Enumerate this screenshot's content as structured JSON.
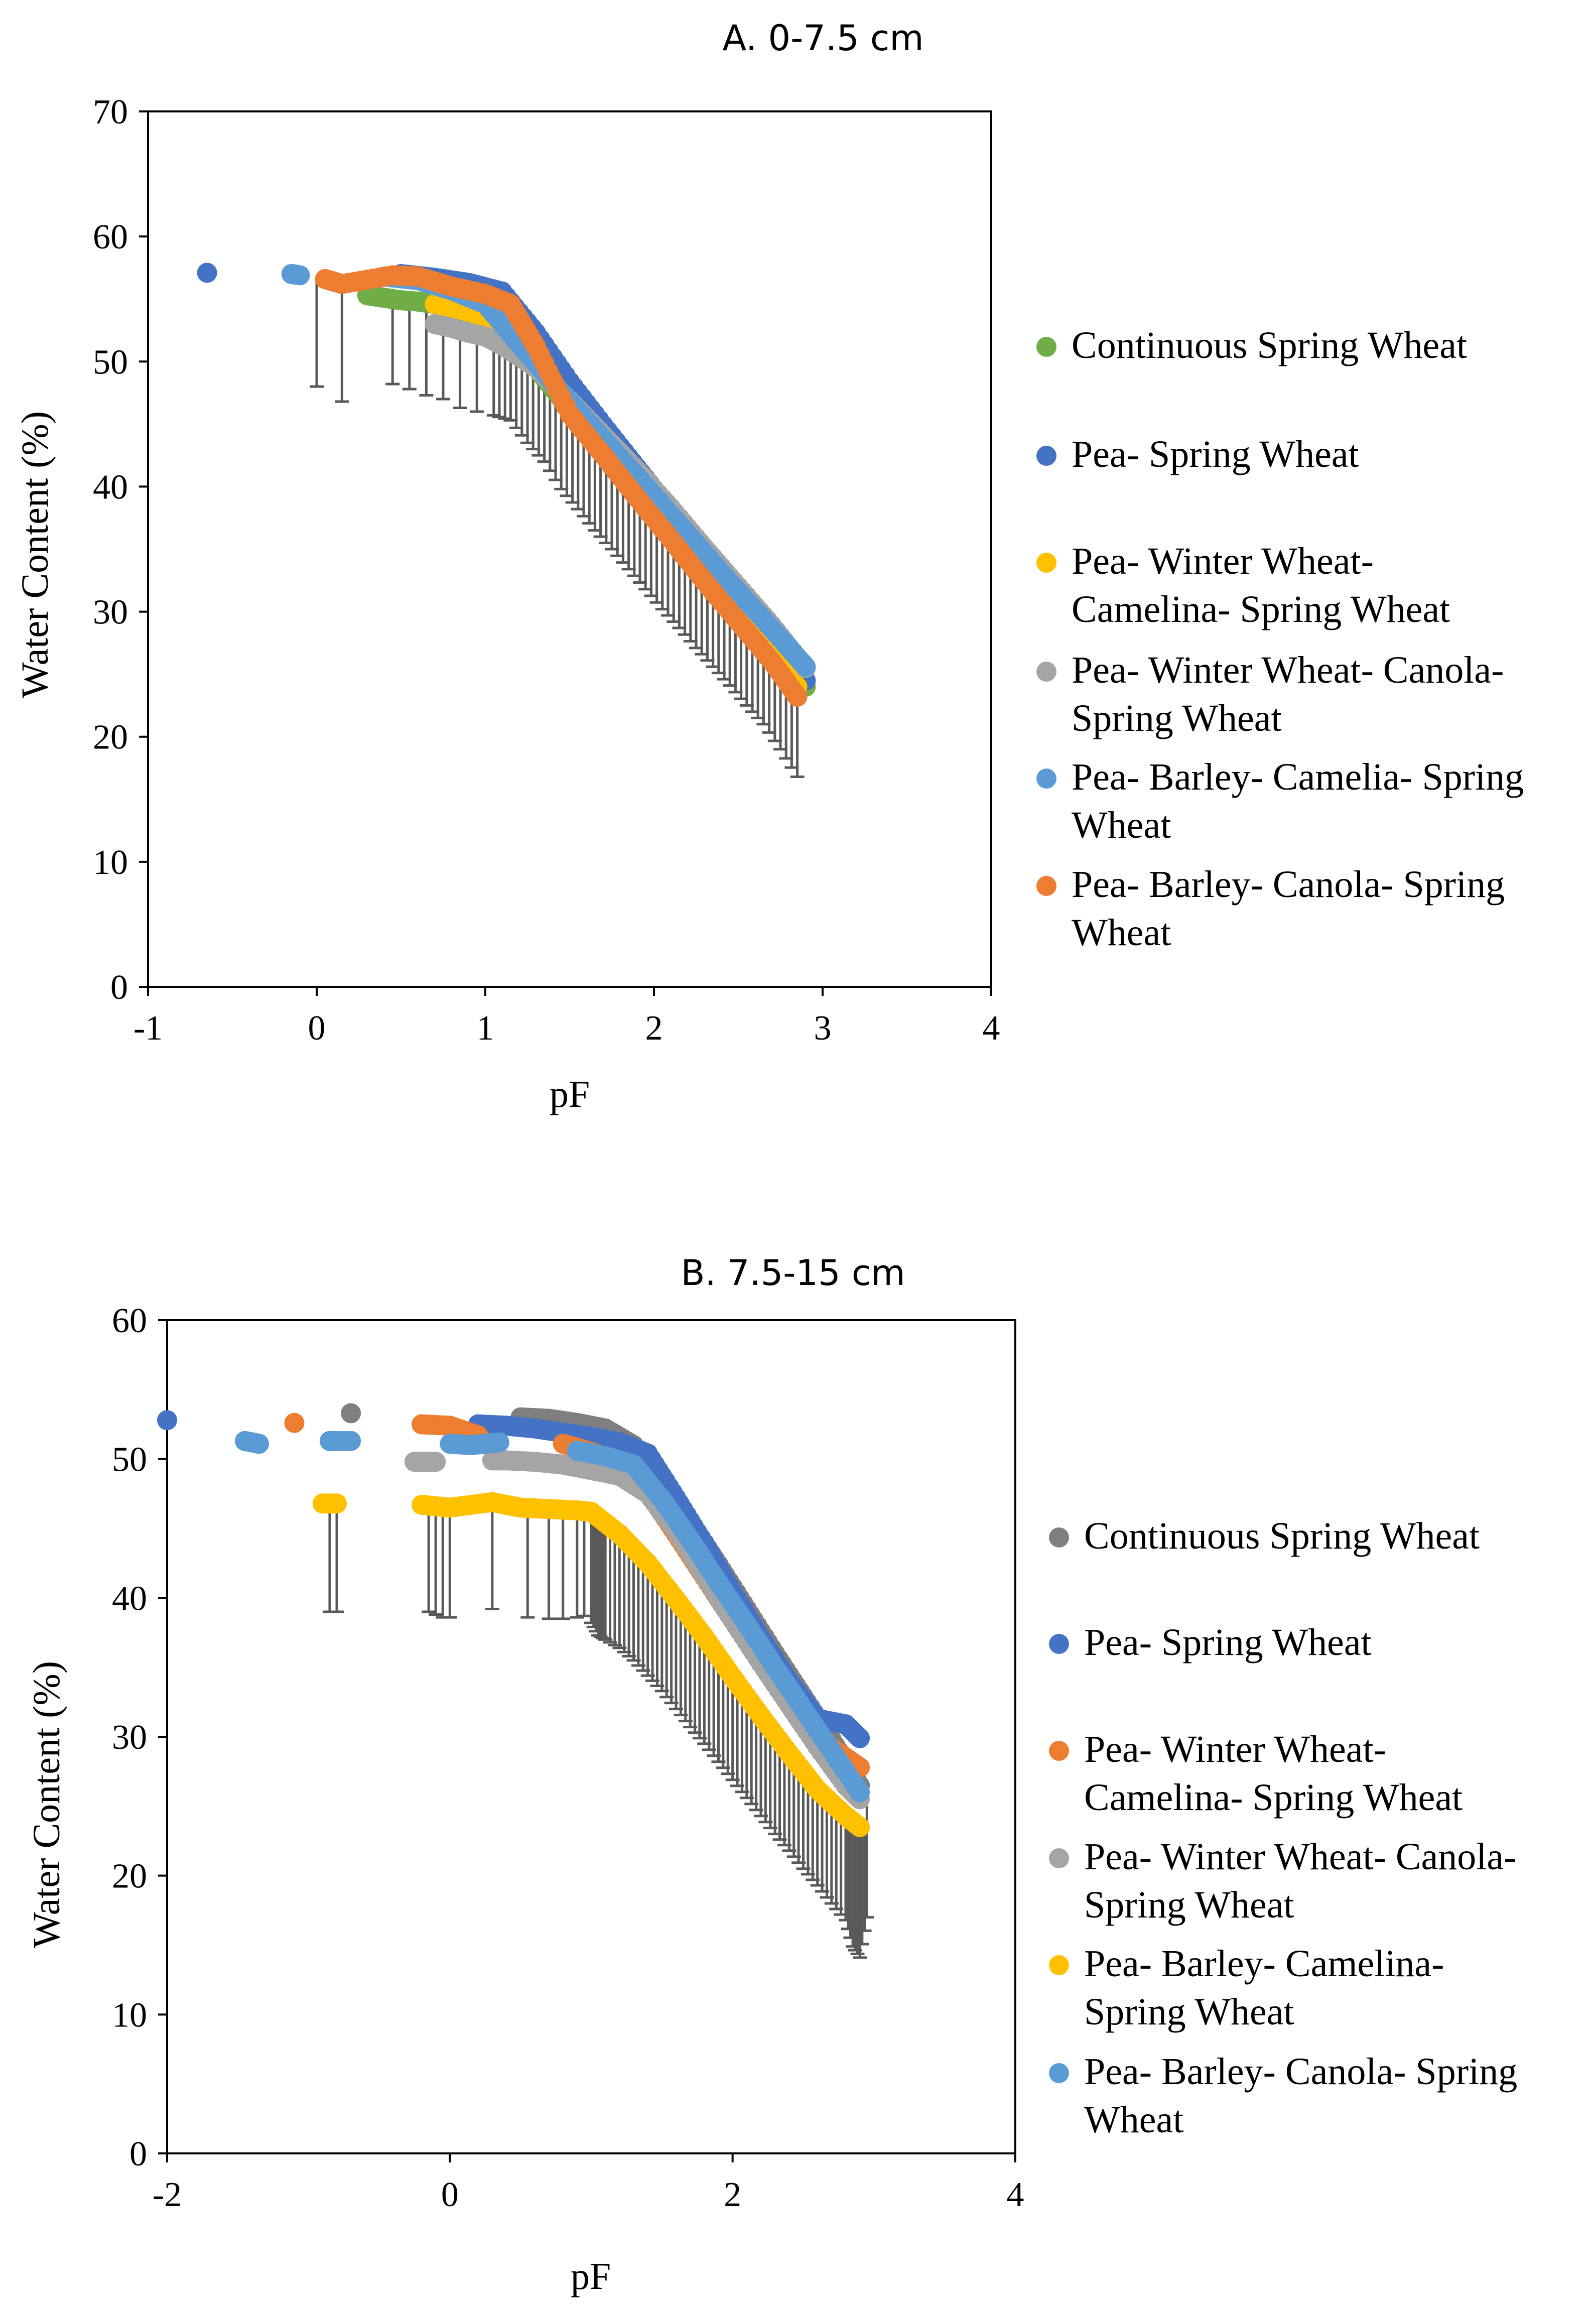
{
  "chart_data": [
    {
      "type": "scatter",
      "title": "A. 0-7.5 cm",
      "xlabel": "pF",
      "ylabel": "Water  Content (%)",
      "xlim": [
        -1,
        4
      ],
      "ylim": [
        0,
        70
      ],
      "xticks": [
        -1,
        0,
        1,
        2,
        3,
        4
      ],
      "yticks": [
        0,
        10,
        20,
        30,
        40,
        50,
        60,
        70
      ],
      "error_bars": "lower, dark grey",
      "series": [
        {
          "name": "Continuous Spring Wheat",
          "color": "#70AD47",
          "x": [
            0.3,
            0.4,
            0.5,
            0.6,
            0.7,
            0.9,
            1.1,
            1.3,
            1.5,
            1.7,
            1.9,
            2.1,
            2.3,
            2.5,
            2.7,
            2.9
          ],
          "y": [
            55.3,
            55.1,
            54.9,
            54.8,
            54.6,
            53.6,
            52.4,
            49.5,
            46.2,
            43.1,
            40.0,
            36.9,
            33.7,
            30.6,
            27.4,
            24.0
          ]
        },
        {
          "name": "Pea- Spring Wheat",
          "color": "#4472C4",
          "x": [
            -0.65,
            0.5,
            0.7,
            0.9,
            1.1,
            1.3,
            1.5,
            1.7,
            1.9,
            2.1,
            2.3,
            2.5,
            2.7,
            2.9
          ],
          "y": [
            57.1,
            57.0,
            56.7,
            56.3,
            55.6,
            52.3,
            48.4,
            44.9,
            41.5,
            38.1,
            34.6,
            31.4,
            28.2,
            24.5
          ]
        },
        {
          "name": "Pea- Winter Wheat- Camelina- Spring Wheat",
          "color": "#FFC000",
          "x": [
            0.7,
            0.8,
            0.9,
            1.0,
            1.1,
            1.3,
            1.5,
            1.7,
            1.9,
            2.1,
            2.3,
            2.5,
            2.7,
            2.85
          ],
          "y": [
            54.6,
            54.3,
            54.0,
            53.6,
            53.1,
            50.1,
            46.6,
            43.1,
            39.6,
            36.2,
            32.8,
            29.5,
            26.3,
            24.0
          ]
        },
        {
          "name": "Pea- Winter Wheat- Canola- Spring Wheat",
          "color": "#A5A5A5",
          "x": [
            0.7,
            0.8,
            0.9,
            1.0,
            1.1,
            1.3,
            1.5,
            1.7,
            1.9,
            2.1,
            2.3,
            2.5,
            2.7,
            2.9
          ],
          "y": [
            53.0,
            52.7,
            52.3,
            52.0,
            51.3,
            49.5,
            46.9,
            44.1,
            41.3,
            38.3,
            35.1,
            32.0,
            28.9,
            25.5
          ]
        },
        {
          "name": "Pea- Barley- Camelia- Spring Wheat",
          "color": "#5B9BD5",
          "x": [
            -0.15,
            -0.1,
            0.4,
            0.6,
            0.8,
            1.0,
            1.2,
            1.4,
            1.6,
            1.8,
            2.0,
            2.2,
            2.4,
            2.6,
            2.8,
            2.9
          ],
          "y": [
            57.0,
            56.9,
            56.8,
            56.5,
            55.7,
            54.6,
            51.4,
            48.3,
            45.3,
            42.3,
            39.3,
            36.2,
            33.1,
            30.1,
            27.1,
            25.6
          ]
        },
        {
          "name": "Pea- Barley- Canola- Spring Wheat",
          "color": "#ED7D31",
          "x": [
            0.05,
            0.15,
            0.45,
            0.6,
            0.8,
            1.0,
            1.15,
            1.3,
            1.5,
            1.7,
            1.9,
            2.1,
            2.3,
            2.5,
            2.7,
            2.85
          ],
          "y": [
            56.6,
            56.2,
            56.9,
            56.8,
            56.0,
            55.4,
            54.6,
            51.2,
            45.8,
            42.5,
            39.1,
            35.8,
            32.4,
            29.2,
            26.0,
            23.2
          ]
        }
      ],
      "error_low": [
        {
          "x": 0.0,
          "y": 48.0
        },
        {
          "x": 0.15,
          "y": 46.8
        },
        {
          "x": 0.45,
          "y": 48.2
        },
        {
          "x": 0.55,
          "y": 47.8
        },
        {
          "x": 0.65,
          "y": 47.3
        },
        {
          "x": 0.75,
          "y": 47.0
        },
        {
          "x": 0.85,
          "y": 46.3
        },
        {
          "x": 0.95,
          "y": 46.0
        },
        {
          "x": 1.05,
          "y": 45.7
        },
        {
          "x": 1.15,
          "y": 45.3
        },
        {
          "x": 1.25,
          "y": 43.5
        },
        {
          "x": 1.35,
          "y": 42.0
        },
        {
          "x": 1.45,
          "y": 39.8
        },
        {
          "x": 1.55,
          "y": 38.2
        },
        {
          "x": 1.65,
          "y": 36.5
        },
        {
          "x": 1.75,
          "y": 35.0
        },
        {
          "x": 1.85,
          "y": 33.4
        },
        {
          "x": 1.95,
          "y": 31.8
        },
        {
          "x": 2.05,
          "y": 30.2
        },
        {
          "x": 2.15,
          "y": 28.7
        },
        {
          "x": 2.25,
          "y": 27.1
        },
        {
          "x": 2.35,
          "y": 25.6
        },
        {
          "x": 2.45,
          "y": 24.1
        },
        {
          "x": 2.55,
          "y": 22.5
        },
        {
          "x": 2.65,
          "y": 21.0
        },
        {
          "x": 2.75,
          "y": 19.0
        },
        {
          "x": 2.85,
          "y": 16.8
        }
      ]
    },
    {
      "type": "scatter",
      "title": "B. 7.5-15 cm",
      "xlabel": "pF",
      "ylabel": "Water Content (%)",
      "xlim": [
        -2,
        4
      ],
      "ylim": [
        0,
        60
      ],
      "xticks": [
        -2,
        0,
        2,
        4
      ],
      "yticks": [
        0,
        10,
        20,
        30,
        40,
        50,
        60
      ],
      "error_bars": "lower, dark grey",
      "series": [
        {
          "name": "Continuous Spring Wheat",
          "color": "#7F7F7F",
          "x": [
            -0.7,
            0.5,
            0.7,
            0.9,
            1.1,
            1.3,
            1.5,
            1.7,
            1.9,
            2.1,
            2.3,
            2.5,
            2.7,
            2.9
          ],
          "y": [
            53.3,
            53.0,
            52.9,
            52.6,
            52.2,
            51.0,
            48.5,
            45.5,
            42.4,
            39.2,
            36.0,
            32.9,
            29.8,
            26.5
          ]
        },
        {
          "name": "Pea- Spring Wheat",
          "color": "#4472C4",
          "x": [
            -2.0,
            0.2,
            0.4,
            0.6,
            0.8,
            1.0,
            1.2,
            1.4,
            1.6,
            1.8,
            2.0,
            2.2,
            2.4,
            2.6,
            2.8,
            2.9
          ],
          "y": [
            52.8,
            52.5,
            52.4,
            52.2,
            51.9,
            51.6,
            51.2,
            50.4,
            47.2,
            43.9,
            40.4,
            37.1,
            34.0,
            31.3,
            30.9,
            29.9
          ]
        },
        {
          "name": "Pea- Winter Wheat- Camelina- Spring Wheat",
          "color": "#ED7D31",
          "x": [
            -1.1,
            -0.2,
            0.0,
            0.2,
            0.8,
            1.0,
            1.2,
            1.4,
            1.6,
            1.8,
            2.0,
            2.2,
            2.4,
            2.6,
            2.8,
            2.9
          ],
          "y": [
            52.6,
            52.5,
            52.4,
            51.7,
            51.1,
            50.5,
            49.8,
            47.6,
            44.6,
            41.5,
            38.4,
            35.5,
            32.6,
            29.9,
            28.5,
            27.8
          ]
        },
        {
          "name": "Pea- Winter Wheat- Canola- Spring Wheat",
          "color": "#A5A5A5",
          "x": [
            -0.25,
            -0.1,
            0.3,
            0.4,
            0.6,
            0.8,
            1.0,
            1.2,
            1.4,
            1.6,
            1.8,
            2.0,
            2.2,
            2.4,
            2.6,
            2.8,
            2.9
          ],
          "y": [
            49.8,
            49.8,
            49.9,
            49.9,
            49.8,
            49.6,
            49.2,
            48.8,
            47.5,
            44.8,
            41.6,
            38.4,
            35.3,
            32.3,
            29.3,
            26.5,
            25.5
          ]
        },
        {
          "name": "Pea- Barley- Camelina- Spring Wheat",
          "color": "#FFC000",
          "x": [
            -0.9,
            -0.8,
            -0.2,
            -0.1,
            0.0,
            0.3,
            0.5,
            0.7,
            0.9,
            1.0,
            1.2,
            1.4,
            1.6,
            1.8,
            2.0,
            2.2,
            2.4,
            2.6,
            2.8,
            2.9
          ],
          "y": [
            46.8,
            46.8,
            46.7,
            46.6,
            46.5,
            46.9,
            46.5,
            46.4,
            46.3,
            46.2,
            44.6,
            42.5,
            39.9,
            37.2,
            34.3,
            31.5,
            28.8,
            26.2,
            24.3,
            23.5
          ]
        },
        {
          "name": "Pea- Barley- Canola- Spring Wheat",
          "color": "#5B9BD5",
          "x": [
            -1.45,
            -1.35,
            -0.85,
            -0.7,
            0.0,
            0.15,
            0.35,
            0.9,
            1.1,
            1.3,
            1.5,
            1.7,
            1.9,
            2.1,
            2.3,
            2.5,
            2.7,
            2.9
          ],
          "y": [
            51.3,
            51.1,
            51.3,
            51.3,
            51.1,
            51.0,
            51.2,
            50.6,
            50.2,
            49.6,
            47.1,
            44.2,
            41.1,
            38.1,
            35.0,
            32.0,
            29.0,
            26.0
          ]
        }
      ],
      "error_low": [
        {
          "x": -0.85,
          "y": 39.0
        },
        {
          "x": -0.8,
          "y": 39.0
        },
        {
          "x": -0.15,
          "y": 39.0
        },
        {
          "x": -0.1,
          "y": 38.8
        },
        {
          "x": -0.05,
          "y": 38.6
        },
        {
          "x": 0.0,
          "y": 38.6
        },
        {
          "x": 0.3,
          "y": 39.2
        },
        {
          "x": 0.55,
          "y": 38.6
        },
        {
          "x": 0.7,
          "y": 38.5
        },
        {
          "x": 0.8,
          "y": 38.5
        },
        {
          "x": 0.9,
          "y": 38.6
        },
        {
          "x": 0.95,
          "y": 38.7
        },
        {
          "x": 1.0,
          "y": 38.2
        },
        {
          "x": 1.05,
          "y": 37.3
        },
        {
          "x": 1.1,
          "y": 37.0
        },
        {
          "x": 1.2,
          "y": 36.4
        },
        {
          "x": 1.3,
          "y": 35.5
        },
        {
          "x": 1.4,
          "y": 34.4
        },
        {
          "x": 1.5,
          "y": 33.3
        },
        {
          "x": 1.6,
          "y": 32.0
        },
        {
          "x": 1.7,
          "y": 30.7
        },
        {
          "x": 1.8,
          "y": 29.5
        },
        {
          "x": 1.9,
          "y": 28.2
        },
        {
          "x": 2.0,
          "y": 26.9
        },
        {
          "x": 2.1,
          "y": 25.6
        },
        {
          "x": 2.2,
          "y": 24.3
        },
        {
          "x": 2.3,
          "y": 23.0
        },
        {
          "x": 2.4,
          "y": 21.8
        },
        {
          "x": 2.5,
          "y": 20.5
        },
        {
          "x": 2.6,
          "y": 19.3
        },
        {
          "x": 2.7,
          "y": 18.0
        },
        {
          "x": 2.8,
          "y": 16.8
        },
        {
          "x": 2.85,
          "y": 14.9
        },
        {
          "x": 2.9,
          "y": 14.1
        },
        {
          "x": 2.95,
          "y": 17.0
        }
      ]
    }
  ]
}
